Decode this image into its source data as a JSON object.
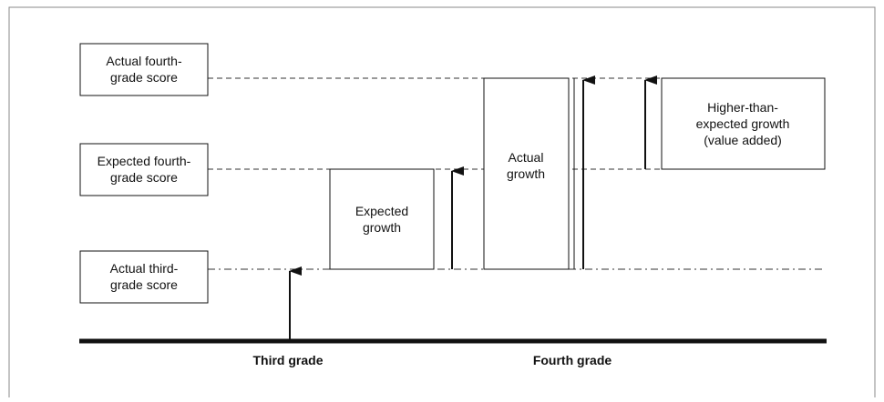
{
  "boxes": [
    {
      "lines": [
        "Actual fourth-",
        "grade score"
      ]
    },
    {
      "lines": [
        "Expected fourth-",
        "grade score"
      ]
    },
    {
      "lines": [
        "Actual third-",
        "grade score"
      ]
    },
    {
      "lines": [
        "Expected",
        "growth"
      ]
    },
    {
      "lines": [
        "Actual",
        "growth"
      ]
    },
    {
      "lines": [
        "Higher-than-",
        "expected growth",
        "(value added)"
      ]
    }
  ],
  "axis_labels": [
    "Third grade",
    "Fourth grade"
  ]
}
